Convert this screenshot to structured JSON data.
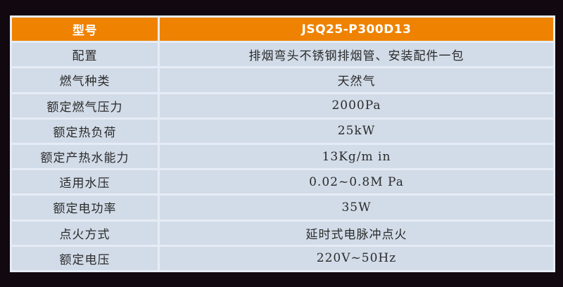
{
  "header": {
    "label": "型号",
    "value": "JSQ25-P300D13"
  },
  "rows": [
    {
      "label": "配置",
      "value": "排烟弯头不锈钢排烟管、安装配件一包"
    },
    {
      "label": "燃气种类",
      "value": "天然气"
    },
    {
      "label": "额定燃气压力",
      "value": "2000Pa"
    },
    {
      "label": "额定热负荷",
      "value": "25kW"
    },
    {
      "label": "额定产热水能力",
      "value": "13Kg/m in"
    },
    {
      "label": "适用水压",
      "value": "0.02~0.8M Pa"
    },
    {
      "label": "额定电功率",
      "value": "35W"
    },
    {
      "label": "点火方式",
      "value": "延时式电脉冲点火"
    },
    {
      "label": "额定电压",
      "value": "220V~50Hz"
    }
  ],
  "colors": {
    "header": "#ef8200",
    "cell": "#d2dce8",
    "background": "#120810"
  }
}
